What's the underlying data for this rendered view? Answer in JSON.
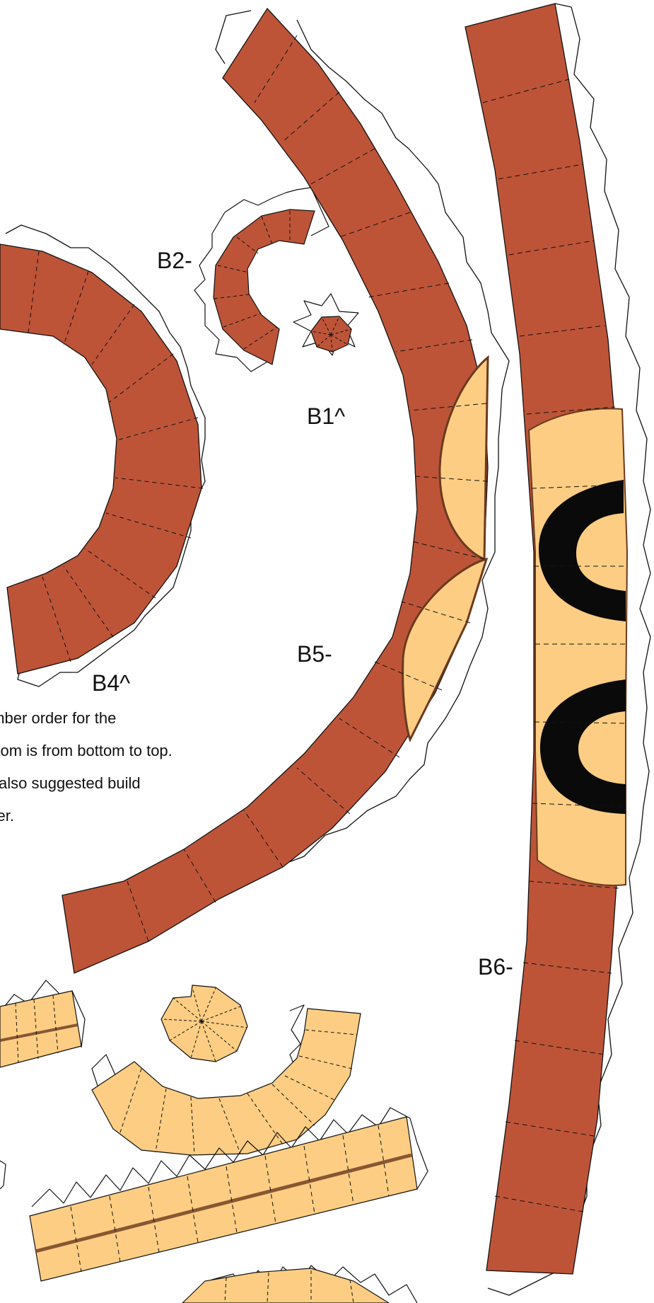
{
  "palette": {
    "brown": "#bd5438",
    "tan": "#fccd83",
    "black": "#0a0a0a",
    "outline": "#111111",
    "tab_fill": "#ffffff"
  },
  "labels": {
    "b1": "B1^",
    "b2": "B2-",
    "b4": "B4^",
    "b5": "B5-",
    "b6": "B6-"
  },
  "note_lines": [
    "umber order for the",
    "ottom is from bottom to top.",
    " is also suggested build",
    "rder."
  ]
}
